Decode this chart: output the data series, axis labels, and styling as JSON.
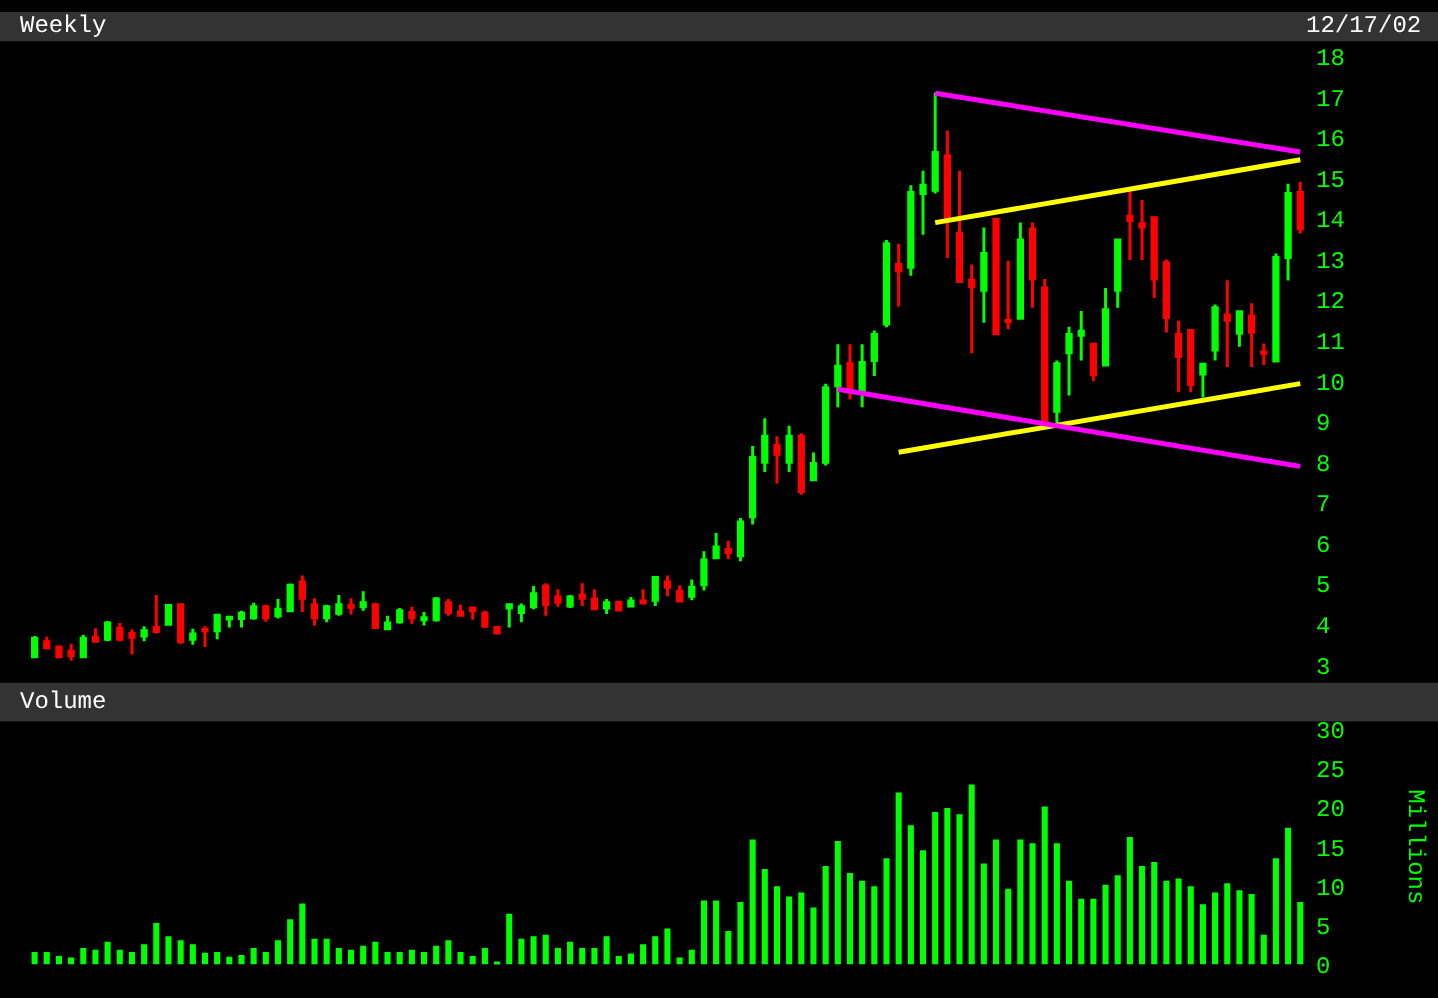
{
  "chart_data": [
    {
      "type": "candlestick",
      "title": "Weekly",
      "annotations": [
        "12/17/02"
      ],
      "tick_labels": "y",
      "ylim": [
        3,
        18
      ],
      "yticks": [
        3,
        4,
        5,
        6,
        7,
        8,
        9,
        10,
        11,
        12,
        13,
        14,
        15,
        16,
        17,
        18
      ],
      "categories": [
        null,
        null,
        null,
        null,
        null,
        null,
        null,
        null,
        null,
        null,
        null,
        null,
        null,
        null,
        null,
        null,
        null,
        null,
        null,
        null,
        null,
        null,
        null,
        null,
        null,
        null,
        null,
        null,
        null,
        null,
        null,
        null,
        null,
        null,
        null,
        null,
        null,
        null,
        null,
        null,
        null,
        null,
        null,
        null,
        null,
        null,
        null,
        null,
        null,
        null,
        null,
        null,
        null,
        null,
        null,
        null,
        null,
        null,
        null,
        null,
        null,
        null,
        null,
        null,
        null,
        null,
        null,
        null,
        null,
        null,
        null,
        null,
        null,
        null,
        null,
        null,
        null,
        null,
        null,
        null,
        null,
        null,
        null,
        null,
        null,
        null,
        null,
        null,
        null,
        null,
        null,
        null,
        null,
        null,
        null,
        null,
        null,
        null,
        null,
        null,
        null,
        null,
        null,
        null,
        null
      ],
      "ohlc": [
        [
          3.21,
          3.72,
          3.2,
          3.66
        ],
        [
          3.58,
          3.7,
          3.4,
          3.43
        ],
        [
          3.45,
          3.48,
          3.21,
          3.21
        ],
        [
          3.34,
          3.53,
          3.11,
          3.24
        ],
        [
          3.21,
          3.75,
          3.21,
          3.66
        ],
        [
          3.69,
          3.91,
          3.59,
          3.59
        ],
        [
          3.64,
          4.09,
          3.59,
          4.04
        ],
        [
          3.91,
          4.04,
          3.59,
          3.64
        ],
        [
          3.78,
          3.88,
          3.26,
          3.69
        ],
        [
          3.72,
          3.96,
          3.59,
          3.85
        ],
        [
          3.93,
          4.73,
          3.78,
          3.83
        ],
        [
          4.01,
          4.5,
          3.98,
          4.47
        ],
        [
          4.49,
          4.49,
          3.53,
          3.58
        ],
        [
          3.64,
          3.9,
          3.5,
          3.77
        ],
        [
          3.88,
          3.96,
          3.45,
          3.85
        ],
        [
          3.85,
          4.23,
          3.64,
          4.23
        ],
        [
          4.14,
          4.18,
          3.93,
          4.18
        ],
        [
          4.15,
          4.34,
          3.93,
          4.28
        ],
        [
          4.17,
          4.54,
          4.12,
          4.44
        ],
        [
          4.44,
          4.49,
          4.07,
          4.17
        ],
        [
          4.22,
          4.63,
          4.15,
          4.38
        ],
        [
          4.34,
          5.01,
          4.31,
          4.97
        ],
        [
          5.05,
          5.21,
          4.31,
          4.65
        ],
        [
          4.49,
          4.65,
          3.98,
          4.17
        ],
        [
          4.17,
          4.49,
          4.06,
          4.44
        ],
        [
          4.28,
          4.73,
          4.22,
          4.49
        ],
        [
          4.47,
          4.65,
          4.25,
          4.42
        ],
        [
          4.44,
          4.82,
          4.34,
          4.54
        ],
        [
          4.49,
          4.54,
          3.9,
          3.93
        ],
        [
          3.9,
          4.22,
          3.9,
          4.04
        ],
        [
          4.07,
          4.41,
          4.02,
          4.34
        ],
        [
          4.3,
          4.44,
          4.02,
          4.17
        ],
        [
          4.12,
          4.31,
          3.98,
          4.17
        ],
        [
          4.12,
          4.68,
          4.07,
          4.63
        ],
        [
          4.54,
          4.63,
          4.22,
          4.3
        ],
        [
          4.31,
          4.49,
          4.23,
          4.23
        ],
        [
          4.41,
          4.41,
          4.12,
          4.34
        ],
        [
          4.28,
          4.34,
          3.96,
          3.96
        ],
        [
          3.93,
          3.96,
          3.79,
          3.79
        ],
        [
          4.41,
          4.49,
          3.93,
          4.49
        ],
        [
          4.3,
          4.52,
          4.06,
          4.44
        ],
        [
          4.44,
          4.95,
          4.38,
          4.76
        ],
        [
          4.95,
          5.02,
          4.22,
          4.49
        ],
        [
          4.68,
          4.87,
          4.44,
          4.55
        ],
        [
          4.46,
          4.73,
          4.41,
          4.68
        ],
        [
          4.73,
          5.02,
          4.46,
          4.65
        ],
        [
          4.63,
          4.87,
          4.36,
          4.39
        ],
        [
          4.41,
          4.63,
          4.26,
          4.54
        ],
        [
          4.55,
          4.58,
          4.36,
          4.36
        ],
        [
          4.46,
          4.68,
          4.46,
          4.58
        ],
        [
          4.58,
          4.87,
          4.49,
          4.54
        ],
        [
          4.6,
          5.16,
          4.46,
          5.16
        ],
        [
          5.05,
          5.21,
          4.7,
          4.92
        ],
        [
          4.82,
          4.97,
          4.58,
          4.58
        ],
        [
          4.7,
          5.11,
          4.6,
          4.92
        ],
        [
          4.98,
          5.81,
          4.84,
          5.59
        ],
        [
          5.65,
          6.26,
          5.65,
          5.91
        ],
        [
          5.85,
          6.07,
          5.61,
          5.78
        ],
        [
          5.7,
          6.63,
          5.56,
          6.53
        ],
        [
          6.66,
          8.4,
          6.47,
          8.12
        ],
        [
          8.0,
          9.09,
          7.76,
          8.64
        ],
        [
          8.42,
          8.64,
          7.48,
          8.2
        ],
        [
          8.0,
          8.9,
          7.76,
          8.64
        ],
        [
          8.64,
          8.72,
          7.2,
          7.28
        ],
        [
          7.57,
          8.24,
          7.57,
          7.97
        ],
        [
          8.0,
          9.94,
          7.92,
          9.84
        ],
        [
          9.89,
          10.91,
          9.36,
          10.37
        ],
        [
          10.43,
          10.91,
          9.55,
          9.78
        ],
        [
          9.78,
          10.91,
          9.36,
          10.46
        ],
        [
          10.51,
          11.25,
          10.13,
          11.15
        ],
        [
          11.41,
          13.48,
          11.33,
          13.39
        ],
        [
          12.88,
          13.39,
          11.84,
          12.72
        ],
        [
          12.81,
          14.83,
          12.6,
          14.65
        ],
        [
          14.63,
          15.19,
          13.61,
          14.83
        ],
        [
          14.71,
          17.11,
          14.63,
          15.64
        ],
        [
          15.56,
          16.18,
          13.04,
          13.96
        ],
        [
          13.64,
          15.19,
          12.46,
          12.46
        ],
        [
          12.49,
          12.88,
          10.69,
          12.33
        ],
        [
          12.24,
          13.79,
          11.44,
          13.15
        ],
        [
          13.99,
          14.03,
          11.17,
          11.17
        ],
        [
          11.5,
          12.97,
          11.28,
          11.47
        ],
        [
          11.55,
          13.91,
          11.55,
          13.48
        ],
        [
          13.75,
          13.91,
          11.81,
          12.52
        ],
        [
          12.3,
          12.52,
          8.91,
          8.96
        ],
        [
          9.26,
          10.51,
          8.96,
          10.43
        ],
        [
          10.7,
          11.34,
          9.65,
          11.15
        ],
        [
          11.13,
          11.73,
          10.51,
          11.23
        ],
        [
          10.91,
          10.91,
          10.0,
          10.16
        ],
        [
          10.4,
          12.3,
          10.4,
          11.76
        ],
        [
          12.24,
          13.48,
          11.81,
          13.48
        ],
        [
          14.07,
          14.71,
          12.99,
          13.96
        ],
        [
          13.88,
          14.47,
          12.99,
          13.8
        ],
        [
          14.03,
          14.07,
          12.05,
          12.52
        ],
        [
          12.92,
          13.0,
          11.2,
          11.57
        ],
        [
          11.15,
          11.49,
          9.73,
          10.61
        ],
        [
          11.25,
          11.25,
          9.73,
          9.92
        ],
        [
          10.18,
          10.42,
          9.6,
          10.42
        ],
        [
          10.77,
          11.89,
          10.51,
          11.81
        ],
        [
          11.63,
          12.49,
          10.35,
          11.5
        ],
        [
          11.18,
          11.71,
          10.85,
          11.71
        ],
        [
          11.61,
          11.92,
          10.35,
          11.21
        ],
        [
          10.72,
          10.93,
          10.4,
          10.69
        ],
        [
          10.5,
          13.15,
          10.5,
          13.05
        ],
        [
          13.05,
          14.87,
          12.48,
          14.63
        ],
        [
          14.65,
          14.92,
          13.64,
          13.76
        ]
      ],
      "colors": [
        "#00ff00",
        "#ff0000",
        "#ff0000",
        "#ff0000",
        "#00ff00",
        "#ff0000",
        "#00ff00",
        "#ff0000",
        "#ff0000",
        "#00ff00",
        "#ff0000",
        "#00ff00",
        "#ff0000",
        "#00ff00",
        "#ff0000",
        "#00ff00",
        "#00ff00",
        "#00ff00",
        "#00ff00",
        "#ff0000",
        "#00ff00",
        "#00ff00",
        "#ff0000",
        "#ff0000",
        "#00ff00",
        "#00ff00",
        "#ff0000",
        "#00ff00",
        "#ff0000",
        "#00ff00",
        "#00ff00",
        "#ff0000",
        "#00ff00",
        "#00ff00",
        "#ff0000",
        "#ff0000",
        "#ff0000",
        "#ff0000",
        "#ff0000",
        "#00ff00",
        "#00ff00",
        "#00ff00",
        "#ff0000",
        "#ff0000",
        "#00ff00",
        "#ff0000",
        "#ff0000",
        "#00ff00",
        "#ff0000",
        "#00ff00",
        "#ff0000",
        "#00ff00",
        "#ff0000",
        "#ff0000",
        "#00ff00",
        "#00ff00",
        "#00ff00",
        "#ff0000",
        "#00ff00",
        "#00ff00",
        "#00ff00",
        "#ff0000",
        "#00ff00",
        "#ff0000",
        "#00ff00",
        "#00ff00",
        "#00ff00",
        "#ff0000",
        "#00ff00",
        "#00ff00",
        "#00ff00",
        "#ff0000",
        "#00ff00",
        "#00ff00",
        "#00ff00",
        "#ff0000",
        "#ff0000",
        "#ff0000",
        "#00ff00",
        "#ff0000",
        "#ff0000",
        "#00ff00",
        "#ff0000",
        "#ff0000",
        "#00ff00",
        "#00ff00",
        "#00ff00",
        "#ff0000",
        "#00ff00",
        "#00ff00",
        "#ff0000",
        "#ff0000",
        "#ff0000",
        "#ff0000",
        "#ff0000",
        "#ff0000",
        "#00ff00",
        "#00ff00",
        "#ff0000",
        "#00ff00",
        "#ff0000",
        "#ff0000",
        "#00ff00",
        "#00ff00",
        "#ff0000"
      ],
      "series": [
        {
          "type": "line",
          "color": "#ff00ff",
          "values": [
            null,
            null,
            null,
            null,
            null,
            null,
            null,
            null,
            null,
            null,
            null,
            null,
            null,
            null,
            null,
            null,
            null,
            null,
            null,
            null,
            null,
            null,
            null,
            null,
            null,
            null,
            null,
            null,
            null,
            null,
            null,
            null,
            null,
            null,
            null,
            null,
            null,
            null,
            null,
            null,
            null,
            null,
            null,
            null,
            null,
            null,
            null,
            null,
            null,
            null,
            null,
            null,
            null,
            null,
            null,
            null,
            null,
            null,
            null,
            null,
            null,
            null,
            null,
            null,
            null,
            null,
            null,
            null,
            null,
            null,
            null,
            null,
            null,
            null,
            17.1,
            null,
            null,
            null,
            null,
            null,
            null,
            null,
            null,
            null,
            null,
            null,
            null,
            null,
            null,
            null,
            null,
            null,
            null,
            null,
            null,
            null,
            null,
            null,
            null,
            null,
            null,
            null,
            null,
            null,
            15.65
          ]
        },
        {
          "type": "line",
          "color": "#ffff00",
          "values": [
            null,
            null,
            null,
            null,
            null,
            null,
            null,
            null,
            null,
            null,
            null,
            null,
            null,
            null,
            null,
            null,
            null,
            null,
            null,
            null,
            null,
            null,
            null,
            null,
            null,
            null,
            null,
            null,
            null,
            null,
            null,
            null,
            null,
            null,
            null,
            null,
            null,
            null,
            null,
            null,
            null,
            null,
            null,
            null,
            null,
            null,
            null,
            null,
            null,
            null,
            null,
            null,
            null,
            null,
            null,
            null,
            null,
            null,
            null,
            null,
            null,
            null,
            null,
            null,
            null,
            null,
            null,
            null,
            null,
            null,
            null,
            null,
            null,
            null,
            13.91,
            null,
            null,
            null,
            null,
            null,
            null,
            null,
            null,
            null,
            null,
            null,
            null,
            null,
            null,
            null,
            null,
            null,
            null,
            null,
            null,
            null,
            null,
            null,
            null,
            null,
            null,
            null,
            null,
            null,
            15.46
          ]
        },
        {
          "type": "line",
          "color": "#ffff00",
          "values": [
            null,
            null,
            null,
            null,
            null,
            null,
            null,
            null,
            null,
            null,
            null,
            null,
            null,
            null,
            null,
            null,
            null,
            null,
            null,
            null,
            null,
            null,
            null,
            null,
            null,
            null,
            null,
            null,
            null,
            null,
            null,
            null,
            null,
            null,
            null,
            null,
            null,
            null,
            null,
            null,
            null,
            null,
            null,
            null,
            null,
            null,
            null,
            null,
            null,
            null,
            null,
            null,
            null,
            null,
            null,
            null,
            null,
            null,
            null,
            null,
            null,
            null,
            null,
            null,
            null,
            null,
            null,
            null,
            null,
            null,
            null,
            8.25,
            null,
            null,
            null,
            null,
            null,
            null,
            null,
            null,
            null,
            null,
            null,
            null,
            null,
            null,
            null,
            null,
            null,
            null,
            null,
            null,
            null,
            null,
            null,
            null,
            null,
            null,
            null,
            null,
            null,
            null,
            null,
            null,
            9.94
          ]
        },
        {
          "type": "line",
          "color": "#ff00ff",
          "values": [
            null,
            null,
            null,
            null,
            null,
            null,
            null,
            null,
            null,
            null,
            null,
            null,
            null,
            null,
            null,
            null,
            null,
            null,
            null,
            null,
            null,
            null,
            null,
            null,
            null,
            null,
            null,
            null,
            null,
            null,
            null,
            null,
            null,
            null,
            null,
            null,
            null,
            null,
            null,
            null,
            null,
            null,
            null,
            null,
            null,
            null,
            null,
            null,
            null,
            null,
            null,
            null,
            null,
            null,
            null,
            null,
            null,
            null,
            null,
            null,
            null,
            null,
            null,
            null,
            null,
            null,
            9.8,
            null,
            null,
            null,
            null,
            null,
            null,
            null,
            null,
            null,
            null,
            null,
            null,
            null,
            null,
            null,
            null,
            null,
            null,
            null,
            null,
            null,
            null,
            null,
            null,
            null,
            null,
            null,
            null,
            null,
            null,
            null,
            null,
            null,
            null,
            null,
            null,
            null,
            7.9
          ]
        }
      ]
    },
    {
      "type": "bar",
      "title": "Volume",
      "ylabel": "Millions",
      "tick_labels": "y",
      "color": "#00ff00",
      "ylim": [
        0,
        30
      ],
      "yticks": [
        0,
        5,
        10,
        15,
        20,
        25,
        30
      ],
      "categories": [
        null,
        null,
        null,
        null,
        null,
        null,
        null,
        null,
        null,
        null,
        null,
        null,
        null,
        null,
        null,
        null,
        null,
        null,
        null,
        null,
        null,
        null,
        null,
        null,
        null,
        null,
        null,
        null,
        null,
        null,
        null,
        null,
        null,
        null,
        null,
        null,
        null,
        null,
        null,
        null,
        null,
        null,
        null,
        null,
        null,
        null,
        null,
        null,
        null,
        null,
        null,
        null,
        null,
        null,
        null,
        null,
        null,
        null,
        null,
        null,
        null,
        null,
        null,
        null,
        null,
        null,
        null,
        null,
        null,
        null,
        null,
        null,
        null,
        null,
        null,
        null,
        null,
        null,
        null,
        null,
        null,
        null,
        null,
        null,
        null,
        null,
        null,
        null,
        null,
        null,
        null,
        null,
        null,
        null,
        null,
        null,
        null,
        null,
        null,
        null,
        null,
        null,
        null,
        null,
        null
      ],
      "values": [
        1.6,
        1.6,
        1.1,
        0.9,
        2.1,
        1.9,
        2.9,
        1.9,
        1.6,
        2.6,
        5.3,
        3.6,
        3.1,
        2.6,
        1.5,
        1.6,
        1.0,
        1.2,
        2.1,
        1.6,
        3.1,
        5.8,
        7.8,
        3.3,
        3.3,
        2.1,
        1.9,
        2.4,
        2.9,
        1.6,
        1.6,
        1.9,
        1.6,
        2.4,
        3.1,
        1.6,
        1.1,
        2.1,
        0.4,
        6.5,
        3.3,
        3.6,
        3.8,
        2.1,
        2.9,
        2.1,
        2.1,
        3.6,
        1.1,
        1.4,
        2.6,
        3.6,
        4.6,
        0.9,
        1.9,
        8.2,
        8.2,
        4.3,
        8.0,
        16,
        12.2,
        10,
        8.7,
        9.2,
        7.3,
        12.6,
        15.8,
        11.7,
        10.7,
        10,
        13.6,
        22,
        17.8,
        14.6,
        19.5,
        20,
        19.2,
        23,
        12.9,
        16,
        9.7,
        16,
        15.5,
        20.2,
        15.5,
        10.7,
        8.4,
        8.4,
        10.2,
        11.4,
        16.3,
        12.6,
        13.1,
        10.7,
        11,
        10,
        7.7,
        9.2,
        10.4,
        9.5,
        9,
        3.8,
        13.6,
        17.5,
        8
      ]
    }
  ]
}
